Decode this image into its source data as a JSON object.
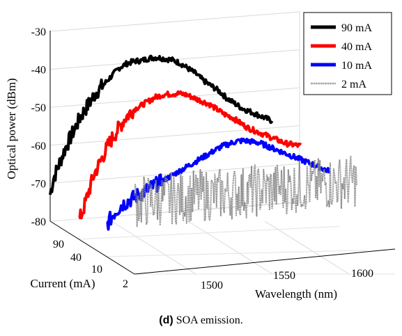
{
  "chart_data": {
    "type": "line",
    "projection": "3d-waterfall",
    "xlabel": "Wavelength (nm)",
    "ylabel": "Current (mA)",
    "zlabel": "Optical power (dBm)",
    "x_ticks": [
      1500,
      1550,
      1600
    ],
    "xlim": [
      1460,
      1630
    ],
    "y_categories": [
      "2",
      "10",
      "40",
      "90"
    ],
    "z_ticks": [
      -30,
      -40,
      -50,
      -60,
      -70,
      -80
    ],
    "zlim": [
      -82,
      -30
    ],
    "legend_position": "top-right",
    "grid": true,
    "series": [
      {
        "name": "90 mA",
        "current": "90",
        "color": "#000000",
        "style": "solid",
        "x": [
          1460,
          1462,
          1465,
          1470,
          1475,
          1480,
          1485,
          1490,
          1495,
          1500,
          1505,
          1510,
          1515,
          1520,
          1525,
          1530,
          1535,
          1540,
          1545,
          1550,
          1555,
          1560,
          1565,
          1570,
          1575,
          1580,
          1585,
          1590,
          1595,
          1600,
          1605
        ],
        "y": [
          -73,
          -69,
          -66,
          -61,
          -57,
          -53,
          -50,
          -47,
          -45,
          -43,
          -41,
          -40,
          -39.5,
          -39.5,
          -39,
          -39,
          -39.5,
          -40,
          -41,
          -42.5,
          -44,
          -46,
          -47.5,
          -49,
          -51,
          -52.5,
          -54,
          -55,
          -56,
          -57,
          -58
        ]
      },
      {
        "name": "40 mA",
        "current": "40",
        "color": "#ff0000",
        "style": "solid",
        "x": [
          1460,
          1463,
          1466,
          1470,
          1475,
          1480,
          1485,
          1490,
          1495,
          1500,
          1505,
          1510,
          1515,
          1520,
          1525,
          1530,
          1535,
          1540,
          1545,
          1550,
          1555,
          1560,
          1565,
          1570,
          1575,
          1580,
          1585,
          1590,
          1595,
          1600,
          1605
        ],
        "y": [
          -80,
          -77,
          -73,
          -68,
          -64,
          -60,
          -57,
          -54,
          -52,
          -51,
          -50,
          -49,
          -48.5,
          -48.5,
          -48.5,
          -49,
          -50,
          -51,
          -52,
          -53.5,
          -55,
          -56,
          -57.5,
          -59,
          -60,
          -61,
          -62,
          -63,
          -64,
          -64.5,
          -65
        ]
      },
      {
        "name": "10 mA",
        "current": "10",
        "color": "#0000ff",
        "style": "solid",
        "x": [
          1460,
          1465,
          1470,
          1475,
          1480,
          1485,
          1490,
          1495,
          1500,
          1505,
          1510,
          1515,
          1520,
          1525,
          1530,
          1535,
          1540,
          1545,
          1550,
          1555,
          1560,
          1565,
          1570,
          1575,
          1580,
          1585,
          1590,
          1595,
          1600,
          1605
        ],
        "y": [
          -81,
          -78,
          -76,
          -75,
          -74,
          -73,
          -72,
          -71,
          -70,
          -69,
          -68,
          -67,
          -66,
          -65,
          -64,
          -63,
          -62.5,
          -62,
          -62,
          -62.5,
          -63,
          -64,
          -65,
          -66,
          -67,
          -68,
          -69,
          -70,
          -71,
          -72
        ]
      },
      {
        "name": "2 mA",
        "current": "2",
        "color": "#888888",
        "style": "dotted",
        "x": [
          1460,
          1605
        ],
        "y": [
          -75,
          -75
        ],
        "noise_range": [
          -82,
          -68
        ]
      }
    ]
  },
  "caption": {
    "label": "(d)",
    "text": " SOA emission."
  }
}
